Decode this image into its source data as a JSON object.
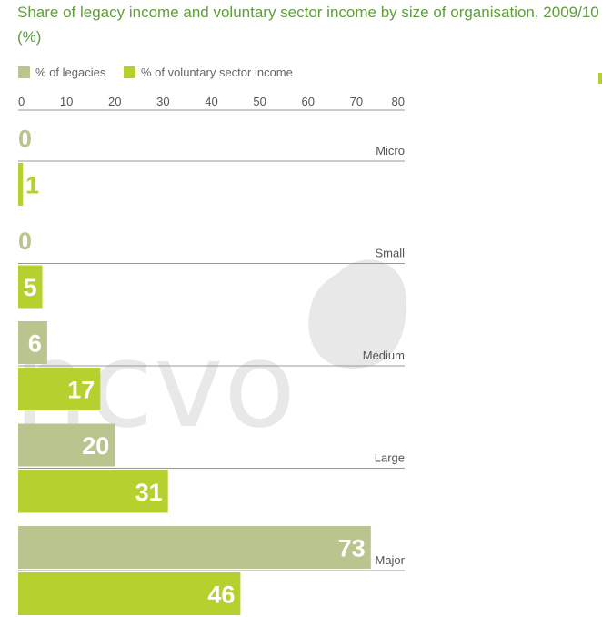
{
  "title": "Share of legacy income and voluntary sector income by size of organisation, 2009/10 (%)",
  "watermark": "ncvo",
  "colors": {
    "legacies": "#bac48f",
    "voluntary": "#b6d02e",
    "axis": "#999999",
    "watermark": "#e8e8e8",
    "title": "#5f9e3b"
  },
  "legend": [
    {
      "label": "% of legacies",
      "color": "#bac48f"
    },
    {
      "label": "% of voluntary sector income",
      "color": "#b6d02e"
    }
  ],
  "chart_data": {
    "type": "bar",
    "orientation": "horizontal",
    "title": "Share of legacy income and voluntary sector income by size of organisation, 2009/10 (%)",
    "categories": [
      "Micro",
      "Small",
      "Medium",
      "Large",
      "Major"
    ],
    "series": [
      {
        "name": "% of legacies",
        "values": [
          0,
          0,
          6,
          20,
          73
        ]
      },
      {
        "name": "% of voluntary sector income",
        "values": [
          1,
          5,
          17,
          31,
          46
        ]
      }
    ],
    "xlim": [
      0,
      80
    ],
    "xticks": [
      "0",
      "10",
      "20",
      "30",
      "40",
      "50",
      "60",
      "70",
      "80"
    ],
    "data_labels": true,
    "legend_position": "top-left"
  }
}
